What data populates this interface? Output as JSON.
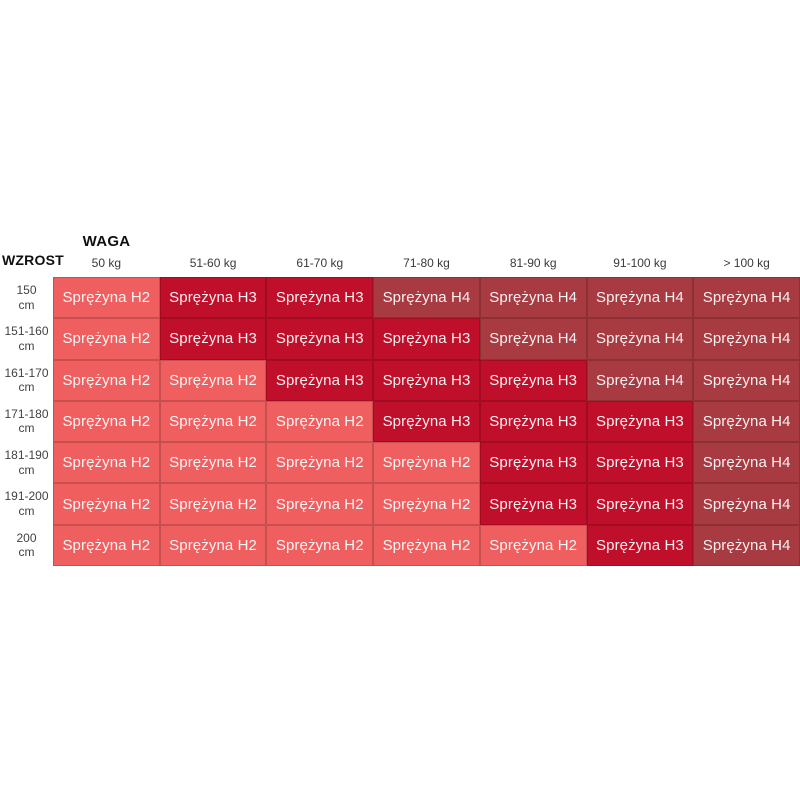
{
  "table": {
    "weight_axis_title": "WAGA",
    "height_axis_title": "WZROST",
    "columns": [
      "50 kg",
      "51-60 kg",
      "61-70 kg",
      "71-80 kg",
      "81-90 kg",
      "91-100 kg",
      "> 100 kg"
    ],
    "rows": [
      {
        "height_range": "150",
        "unit": "cm",
        "cells": [
          {
            "text": "Sprężyna H2",
            "level": "H2"
          },
          {
            "text": "Sprężyna H3",
            "level": "H3"
          },
          {
            "text": "Sprężyna H3",
            "level": "H3"
          },
          {
            "text": "Sprężyna H4",
            "level": "H4"
          },
          {
            "text": "Sprężyna H4",
            "level": "H4"
          },
          {
            "text": "Sprężyna H4",
            "level": "H4"
          },
          {
            "text": "Sprężyna H4",
            "level": "H4"
          }
        ]
      },
      {
        "height_range": "151-160",
        "unit": "cm",
        "cells": [
          {
            "text": "Sprężyna H2",
            "level": "H2"
          },
          {
            "text": "Sprężyna H3",
            "level": "H3"
          },
          {
            "text": "Sprężyna H3",
            "level": "H3"
          },
          {
            "text": "Sprężyna H3",
            "level": "H3"
          },
          {
            "text": "Sprężyna H4",
            "level": "H4"
          },
          {
            "text": "Sprężyna H4",
            "level": "H4"
          },
          {
            "text": "Sprężyna H4",
            "level": "H4"
          }
        ]
      },
      {
        "height_range": "161-170",
        "unit": "cm",
        "cells": [
          {
            "text": "Sprężyna H2",
            "level": "H2"
          },
          {
            "text": "Sprężyna H2",
            "level": "H2"
          },
          {
            "text": "Sprężyna H3",
            "level": "H3"
          },
          {
            "text": "Sprężyna H3",
            "level": "H3"
          },
          {
            "text": "Sprężyna H3",
            "level": "H3"
          },
          {
            "text": "Sprężyna H4",
            "level": "H4"
          },
          {
            "text": "Sprężyna H4",
            "level": "H4"
          }
        ]
      },
      {
        "height_range": "171-180",
        "unit": "cm",
        "cells": [
          {
            "text": "Sprężyna H2",
            "level": "H2"
          },
          {
            "text": "Sprężyna H2",
            "level": "H2"
          },
          {
            "text": "Sprężyna H2",
            "level": "H2"
          },
          {
            "text": "Sprężyna H3",
            "level": "H3"
          },
          {
            "text": "Sprężyna H3",
            "level": "H3"
          },
          {
            "text": "Sprężyna H3",
            "level": "H3"
          },
          {
            "text": "Sprężyna H4",
            "level": "H4"
          }
        ]
      },
      {
        "height_range": "181-190",
        "unit": "cm",
        "cells": [
          {
            "text": "Sprężyna H2",
            "level": "H2"
          },
          {
            "text": "Sprężyna H2",
            "level": "H2"
          },
          {
            "text": "Sprężyna H2",
            "level": "H2"
          },
          {
            "text": "Sprężyna H2",
            "level": "H2"
          },
          {
            "text": "Sprężyna H3",
            "level": "H3"
          },
          {
            "text": "Sprężyna H3",
            "level": "H3"
          },
          {
            "text": "Sprężyna H4",
            "level": "H4"
          }
        ]
      },
      {
        "height_range": "191-200",
        "unit": "cm",
        "cells": [
          {
            "text": "Sprężyna H2",
            "level": "H2"
          },
          {
            "text": "Sprężyna H2",
            "level": "H2"
          },
          {
            "text": "Sprężyna H2",
            "level": "H2"
          },
          {
            "text": "Sprężyna H2",
            "level": "H2"
          },
          {
            "text": "Sprężyna H3",
            "level": "H3"
          },
          {
            "text": "Sprężyna H3",
            "level": "H3"
          },
          {
            "text": "Sprężyna H4",
            "level": "H4"
          }
        ]
      },
      {
        "height_range": "200",
        "unit": "cm",
        "cells": [
          {
            "text": "Sprężyna H2",
            "level": "H2"
          },
          {
            "text": "Sprężyna H2",
            "level": "H2"
          },
          {
            "text": "Sprężyna H2",
            "level": "H2"
          },
          {
            "text": "Sprężyna H2",
            "level": "H2"
          },
          {
            "text": "Sprężyna H2",
            "level": "H2"
          },
          {
            "text": "Sprężyna H3",
            "level": "H3"
          },
          {
            "text": "Sprężyna H4",
            "level": "H4"
          }
        ]
      }
    ]
  },
  "colors": {
    "H2": "#ef5f60",
    "H3": "#c00f2a",
    "H4": "#a83a41",
    "grid_line": "rgba(0,0,0,0.16)",
    "header_text": "#3a3a3a",
    "axis_title_text": "#101010",
    "cell_text": "rgba(255,255,255,0.93)"
  },
  "chart_data": {
    "type": "heatmap",
    "title": "",
    "xlabel": "WAGA",
    "ylabel": "WZROST",
    "x_categories": [
      "50 kg",
      "51-60 kg",
      "61-70 kg",
      "71-80 kg",
      "81-90 kg",
      "91-100 kg",
      "> 100 kg"
    ],
    "y_categories": [
      "150 cm",
      "151-160 cm",
      "161-170 cm",
      "171-180 cm",
      "181-190 cm",
      "191-200 cm",
      "200 cm"
    ],
    "values": [
      [
        "H2",
        "H3",
        "H3",
        "H4",
        "H4",
        "H4",
        "H4"
      ],
      [
        "H2",
        "H3",
        "H3",
        "H3",
        "H4",
        "H4",
        "H4"
      ],
      [
        "H2",
        "H2",
        "H3",
        "H3",
        "H3",
        "H4",
        "H4"
      ],
      [
        "H2",
        "H2",
        "H2",
        "H3",
        "H3",
        "H3",
        "H4"
      ],
      [
        "H2",
        "H2",
        "H2",
        "H2",
        "H3",
        "H3",
        "H4"
      ],
      [
        "H2",
        "H2",
        "H2",
        "H2",
        "H3",
        "H3",
        "H4"
      ],
      [
        "H2",
        "H2",
        "H2",
        "H2",
        "H2",
        "H3",
        "H4"
      ]
    ],
    "cell_label_format": "Sprężyna {value}",
    "color_map": {
      "H2": "#ef5f60",
      "H3": "#c00f2a",
      "H4": "#a83a41"
    },
    "legend": "none",
    "grid": "on"
  }
}
